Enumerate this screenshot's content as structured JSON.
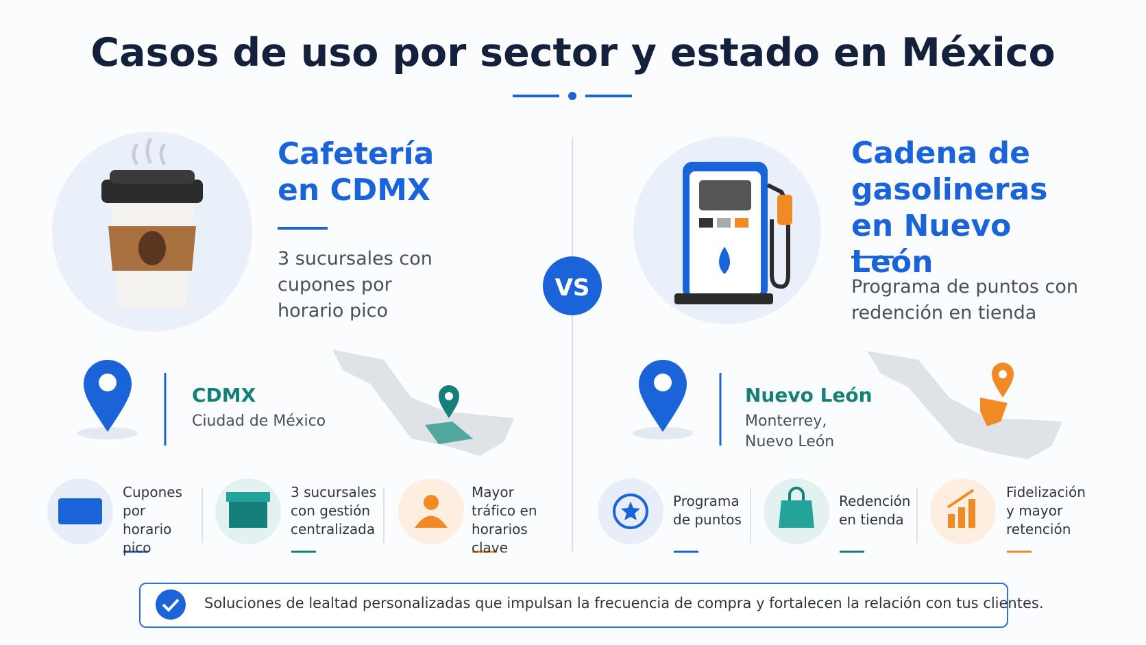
{
  "title": "Casos de uso por sector y estado en México",
  "vs": "VS",
  "left": {
    "title": "Cafetería en CDMX",
    "description": "3 sucursales con cupones por horario pico",
    "location": {
      "name": "CDMX",
      "detail": "Ciudad de México"
    },
    "features": [
      "Cupones por horario pico",
      "3 sucursales con gestión centralizada",
      "Mayor tráfico en horarios clave"
    ]
  },
  "right": {
    "title": "Cadena de gasolineras en Nuevo León",
    "description": "Programa de puntos con redención en tienda",
    "location": {
      "name": "Nuevo León",
      "detail": "Monterrey, Nuevo León"
    },
    "features": [
      "Programa de puntos",
      "Redención en tienda",
      "Fidelización y mayor retención"
    ]
  },
  "footer": "Soluciones de lealtad personalizadas que impulsan la frecuencia de compra y fortalecen la relación con tus clientes."
}
